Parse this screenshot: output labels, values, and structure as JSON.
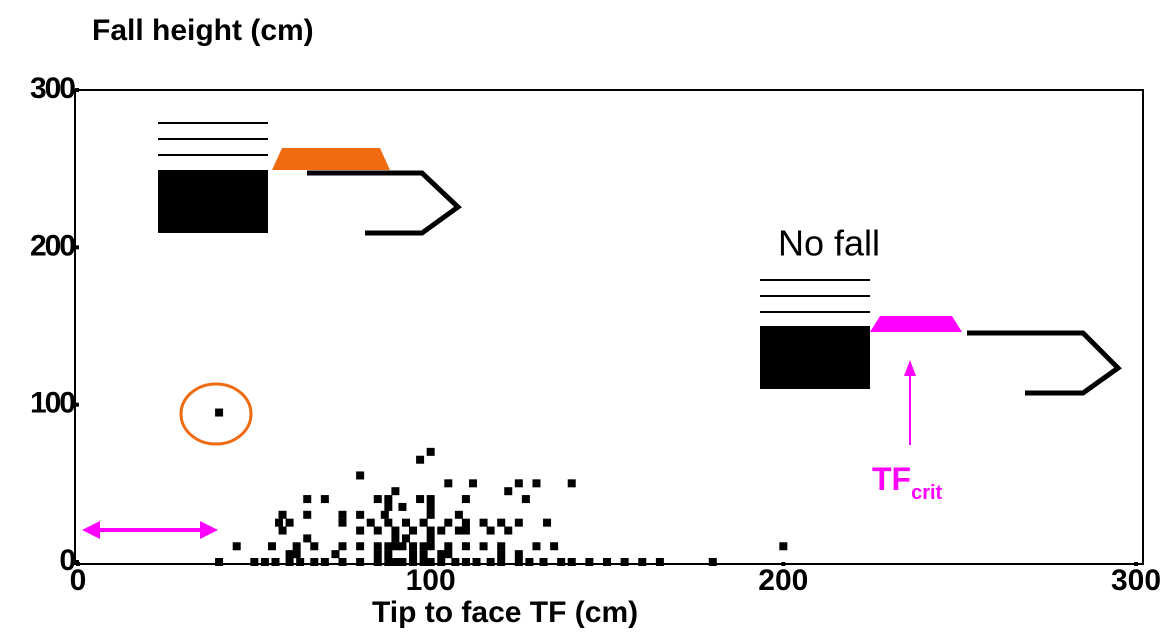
{
  "chart_data": {
    "type": "scatter",
    "title": "Fall height (cm)",
    "x_label": "Tip to face TF (cm)",
    "annotations": [
      "No fall",
      "TF",
      "crit"
    ],
    "color": "#000000",
    "xlim": [
      0,
      300
    ],
    "ylim": [
      0,
      300
    ],
    "xticks": [
      0,
      100,
      200,
      300
    ],
    "yticks": [
      0,
      100,
      200,
      300
    ],
    "grid": false,
    "x": [
      40,
      50,
      53,
      56,
      60,
      63,
      67,
      70,
      75,
      80,
      85,
      88,
      90,
      92,
      95,
      98,
      100,
      103,
      107,
      110,
      113,
      117,
      120,
      125,
      128,
      132,
      137,
      140,
      145,
      150,
      155,
      160,
      165,
      180,
      40,
      60,
      62,
      73,
      85,
      88,
      95,
      98,
      103,
      105,
      120,
      125,
      45,
      55,
      62,
      67,
      75,
      80,
      85,
      88,
      90,
      92,
      95,
      98,
      100,
      105,
      110,
      115,
      120,
      130,
      135,
      200,
      65,
      90,
      93,
      100,
      58,
      80,
      85,
      90,
      95,
      100,
      103,
      108,
      110,
      117,
      122,
      57,
      60,
      75,
      83,
      88,
      93,
      98,
      105,
      110,
      115,
      120,
      125,
      133,
      58,
      65,
      75,
      80,
      87,
      100,
      108,
      88,
      92,
      100,
      65,
      70,
      85,
      88,
      97,
      100,
      110,
      127,
      90,
      122,
      105,
      112,
      125,
      130,
      140,
      80,
      97,
      100
    ],
    "values": [
      0,
      0,
      0,
      0,
      0,
      0,
      0,
      0,
      0,
      0,
      0,
      0,
      0,
      0,
      0,
      0,
      0,
      0,
      0,
      0,
      0,
      0,
      0,
      0,
      0,
      0,
      0,
      0,
      0,
      0,
      0,
      0,
      0,
      0,
      95,
      5,
      5,
      5,
      5,
      5,
      5,
      5,
      5,
      5,
      5,
      5,
      10,
      10,
      10,
      10,
      10,
      10,
      10,
      10,
      10,
      10,
      10,
      10,
      10,
      10,
      10,
      10,
      10,
      10,
      10,
      10,
      15,
      15,
      15,
      15,
      20,
      20,
      20,
      20,
      20,
      20,
      20,
      20,
      20,
      20,
      20,
      25,
      25,
      25,
      25,
      25,
      25,
      25,
      25,
      25,
      25,
      25,
      25,
      25,
      30,
      30,
      30,
      30,
      30,
      30,
      30,
      35,
      35,
      35,
      40,
      40,
      40,
      40,
      40,
      40,
      40,
      40,
      45,
      45,
      50,
      50,
      50,
      50,
      50,
      55,
      65,
      70
    ]
  }
}
